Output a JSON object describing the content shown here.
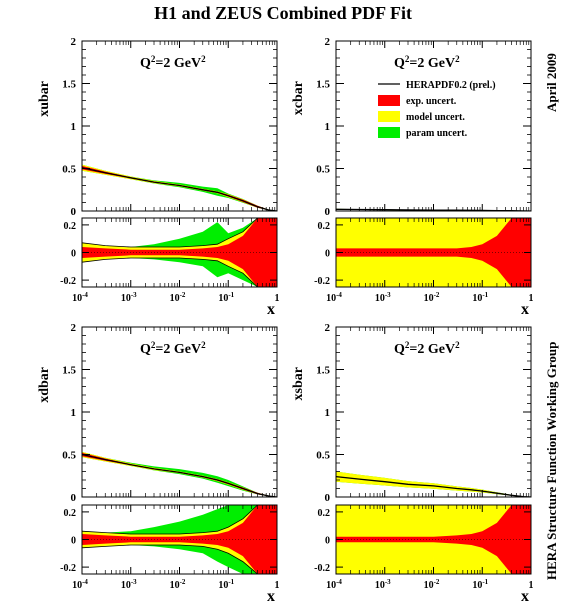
{
  "title": "H1 and ZEUS Combined PDF Fit",
  "side_right_top": "April 2009",
  "side_right_bottom": "HERA Structure Function Working Group",
  "x_axis_label": "x",
  "colors": {
    "central": "#000000",
    "exp": "#ff0000",
    "model": "#ffff00",
    "param": "#00ee00"
  },
  "legend": {
    "central": "HERAPDF0.2 (prel.)",
    "exp": "exp. uncert.",
    "model": "model uncert.",
    "param": "param uncert."
  },
  "chart_data": [
    {
      "type": "area",
      "panel": "top-left",
      "ylabel": "xubar",
      "scale_label": "Q²=2 GeV²",
      "x_scale": "log",
      "xlim": [
        0.0001,
        1
      ],
      "ylim": [
        0,
        2
      ],
      "ratio_ylim": [
        -0.25,
        0.25
      ],
      "x_tick_labels": [
        "10⁻⁴",
        "10⁻³",
        "10⁻²",
        "10⁻¹",
        "1"
      ],
      "y_tick_labels": [
        "0",
        "0.5",
        "1",
        "1.5",
        "2"
      ],
      "ratio_tick_labels": [
        "0.2",
        "0",
        "-0.2"
      ],
      "x": [
        0.0001,
        0.0003,
        0.001,
        0.003,
        0.01,
        0.03,
        0.06,
        0.1,
        0.2,
        0.4,
        0.7,
        1.0
      ],
      "central": [
        0.51,
        0.45,
        0.39,
        0.34,
        0.3,
        0.25,
        0.22,
        0.18,
        0.12,
        0.05,
        0.01,
        0.0
      ],
      "ratio_bands": {
        "exp_up": [
          0.04,
          0.03,
          0.02,
          0.02,
          0.02,
          0.03,
          0.04,
          0.06,
          0.12,
          0.25,
          0.25,
          0.25
        ],
        "exp_down": [
          -0.04,
          -0.03,
          -0.02,
          -0.02,
          -0.02,
          -0.03,
          -0.04,
          -0.06,
          -0.12,
          -0.25,
          -0.25,
          -0.25
        ],
        "model_up": [
          0.07,
          0.05,
          0.04,
          0.04,
          0.04,
          0.05,
          0.06,
          0.1,
          0.15,
          0.25,
          0.25,
          0.25
        ],
        "model_down": [
          -0.07,
          -0.05,
          -0.04,
          -0.04,
          -0.04,
          -0.05,
          -0.06,
          -0.1,
          -0.15,
          -0.25,
          -0.25,
          -0.25
        ],
        "param_up": [
          0.07,
          0.05,
          0.04,
          0.06,
          0.1,
          0.15,
          0.22,
          0.14,
          0.18,
          0.25,
          0.25,
          0.25
        ],
        "param_down": [
          -0.07,
          -0.05,
          -0.04,
          -0.05,
          -0.07,
          -0.1,
          -0.18,
          -0.15,
          -0.2,
          -0.25,
          -0.25,
          -0.25
        ]
      }
    },
    {
      "type": "area",
      "panel": "top-right",
      "ylabel": "xcbar",
      "scale_label": "Q²=2 GeV²",
      "x_scale": "log",
      "xlim": [
        0.0001,
        1
      ],
      "ylim": [
        0,
        2
      ],
      "ratio_ylim": [
        -0.25,
        0.25
      ],
      "x_tick_labels": [
        "10⁻⁴",
        "10⁻³",
        "10⁻²",
        "10⁻¹",
        "1"
      ],
      "y_tick_labels": [
        "0",
        "0.5",
        "1",
        "1.5",
        "2"
      ],
      "ratio_tick_labels": [
        "0.2",
        "0",
        "-0.2"
      ],
      "x": [
        0.0001,
        0.0003,
        0.001,
        0.003,
        0.01,
        0.03,
        0.06,
        0.1,
        0.2,
        0.4,
        0.7,
        1.0
      ],
      "central": [
        0.02,
        0.018,
        0.015,
        0.013,
        0.011,
        0.009,
        0.008,
        0.007,
        0.005,
        0.003,
        0.001,
        0.0
      ],
      "ratio_bands": {
        "exp_up": [
          0.03,
          0.03,
          0.03,
          0.03,
          0.03,
          0.03,
          0.04,
          0.06,
          0.12,
          0.25,
          0.25,
          0.25
        ],
        "exp_down": [
          -0.03,
          -0.03,
          -0.03,
          -0.03,
          -0.03,
          -0.03,
          -0.04,
          -0.06,
          -0.12,
          -0.25,
          -0.25,
          -0.25
        ],
        "model_up": [
          0.25,
          0.25,
          0.25,
          0.25,
          0.25,
          0.25,
          0.25,
          0.25,
          0.25,
          0.25,
          0.25,
          0.25
        ],
        "model_down": [
          -0.25,
          -0.25,
          -0.25,
          -0.25,
          -0.25,
          -0.25,
          -0.25,
          -0.25,
          -0.25,
          -0.25,
          -0.25,
          -0.25
        ],
        "param_up": [
          0.25,
          0.25,
          0.25,
          0.25,
          0.25,
          0.25,
          0.25,
          0.25,
          0.25,
          0.25,
          0.25,
          0.25
        ],
        "param_down": [
          -0.25,
          -0.25,
          -0.25,
          -0.25,
          -0.25,
          -0.25,
          -0.25,
          -0.25,
          -0.25,
          -0.25,
          -0.25,
          -0.25
        ]
      }
    },
    {
      "type": "area",
      "panel": "bottom-left",
      "ylabel": "xdbar",
      "scale_label": "Q²=2 GeV²",
      "x_scale": "log",
      "xlim": [
        0.0001,
        1
      ],
      "ylim": [
        0,
        2
      ],
      "ratio_ylim": [
        -0.25,
        0.25
      ],
      "x_tick_labels": [
        "10⁻⁴",
        "10⁻³",
        "10⁻²",
        "10⁻¹",
        "1"
      ],
      "y_tick_labels": [
        "0",
        "0.5",
        "1",
        "1.5",
        "2"
      ],
      "ratio_tick_labels": [
        "0.2",
        "0",
        "-0.2"
      ],
      "x": [
        0.0001,
        0.0003,
        0.001,
        0.003,
        0.01,
        0.03,
        0.06,
        0.1,
        0.2,
        0.4,
        0.7,
        1.0
      ],
      "central": [
        0.5,
        0.44,
        0.38,
        0.33,
        0.29,
        0.24,
        0.2,
        0.16,
        0.1,
        0.04,
        0.01,
        0.0
      ],
      "ratio_bands": {
        "exp_up": [
          0.04,
          0.03,
          0.02,
          0.02,
          0.02,
          0.03,
          0.04,
          0.06,
          0.12,
          0.25,
          0.25,
          0.25
        ],
        "exp_down": [
          -0.04,
          -0.03,
          -0.02,
          -0.02,
          -0.02,
          -0.03,
          -0.04,
          -0.06,
          -0.12,
          -0.25,
          -0.25,
          -0.25
        ],
        "model_up": [
          0.06,
          0.05,
          0.04,
          0.04,
          0.04,
          0.05,
          0.06,
          0.09,
          0.15,
          0.25,
          0.25,
          0.25
        ],
        "model_down": [
          -0.06,
          -0.05,
          -0.04,
          -0.04,
          -0.04,
          -0.05,
          -0.07,
          -0.1,
          -0.16,
          -0.25,
          -0.25,
          -0.25
        ],
        "param_up": [
          0.06,
          0.05,
          0.06,
          0.09,
          0.13,
          0.18,
          0.22,
          0.25,
          0.25,
          0.25,
          0.25,
          0.25
        ],
        "param_down": [
          -0.06,
          -0.05,
          -0.04,
          -0.05,
          -0.07,
          -0.1,
          -0.16,
          -0.2,
          -0.25,
          -0.25,
          -0.25,
          -0.25
        ]
      }
    },
    {
      "type": "area",
      "panel": "bottom-right",
      "ylabel": "xsbar",
      "scale_label": "Q²=2 GeV²",
      "x_scale": "log",
      "xlim": [
        0.0001,
        1
      ],
      "ylim": [
        0,
        2
      ],
      "ratio_ylim": [
        -0.25,
        0.25
      ],
      "x_tick_labels": [
        "10⁻⁴",
        "10⁻³",
        "10⁻²",
        "10⁻¹",
        "1"
      ],
      "y_tick_labels": [
        "0",
        "0.5",
        "1",
        "1.5",
        "2"
      ],
      "ratio_tick_labels": [
        "0.2",
        "0",
        "-0.2"
      ],
      "x": [
        0.0001,
        0.0003,
        0.001,
        0.003,
        0.01,
        0.03,
        0.06,
        0.1,
        0.2,
        0.4,
        0.7,
        1.0
      ],
      "central": [
        0.24,
        0.21,
        0.18,
        0.15,
        0.13,
        0.1,
        0.085,
        0.07,
        0.045,
        0.02,
        0.005,
        0.0
      ],
      "ratio_bands": {
        "exp_up": [
          0.02,
          0.02,
          0.02,
          0.02,
          0.02,
          0.03,
          0.04,
          0.06,
          0.12,
          0.25,
          0.25,
          0.25
        ],
        "exp_down": [
          -0.02,
          -0.02,
          -0.02,
          -0.02,
          -0.02,
          -0.03,
          -0.04,
          -0.06,
          -0.12,
          -0.25,
          -0.25,
          -0.25
        ],
        "model_up": [
          0.25,
          0.25,
          0.25,
          0.25,
          0.25,
          0.25,
          0.25,
          0.25,
          0.25,
          0.25,
          0.25,
          0.25
        ],
        "model_down": [
          -0.25,
          -0.25,
          -0.25,
          -0.25,
          -0.25,
          -0.25,
          -0.25,
          -0.25,
          -0.25,
          -0.25,
          -0.25,
          -0.25
        ],
        "param_up": [
          0.25,
          0.25,
          0.25,
          0.25,
          0.25,
          0.25,
          0.25,
          0.25,
          0.25,
          0.25,
          0.25,
          0.25
        ],
        "param_down": [
          -0.25,
          -0.25,
          -0.25,
          -0.25,
          -0.25,
          -0.25,
          -0.25,
          -0.25,
          -0.25,
          -0.25,
          -0.25,
          -0.25
        ]
      }
    }
  ]
}
